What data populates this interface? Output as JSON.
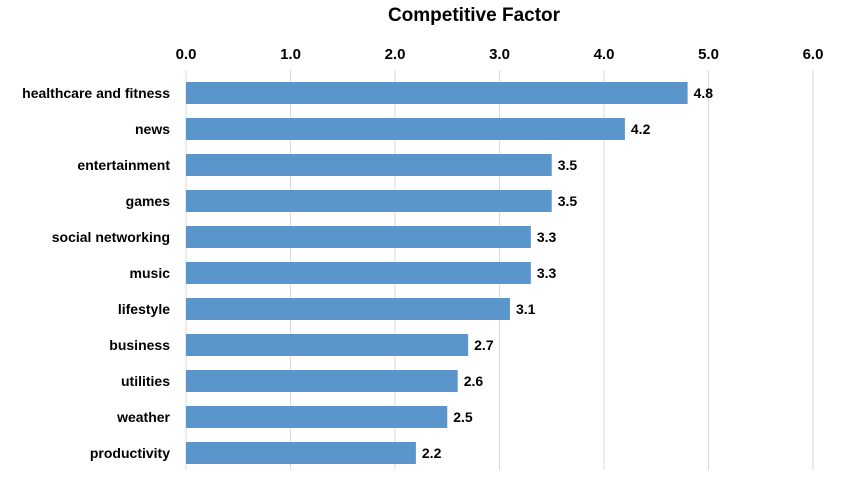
{
  "chart_data": {
    "type": "bar",
    "orientation": "horizontal",
    "title": "Competitive Factor",
    "xlabel": "",
    "ylabel": "",
    "categories": [
      "healthcare and fitness",
      "news",
      "entertainment",
      "games",
      "social networking",
      "music",
      "lifestyle",
      "business",
      "utilities",
      "weather",
      "productivity"
    ],
    "values": [
      4.8,
      4.2,
      3.5,
      3.5,
      3.3,
      3.3,
      3.1,
      2.7,
      2.6,
      2.5,
      2.2
    ],
    "value_labels": [
      "4.8",
      "4.2",
      "3.5",
      "3.5",
      "3.3",
      "3.3",
      "3.1",
      "2.7",
      "2.6",
      "2.5",
      "2.2"
    ],
    "xlim": [
      0,
      6
    ],
    "x_ticks": [
      0,
      1,
      2,
      3,
      4,
      5,
      6
    ],
    "x_tick_labels": [
      "0.0",
      "1.0",
      "2.0",
      "3.0",
      "4.0",
      "5.0",
      "6.0"
    ],
    "axis_position": "top",
    "grid": true,
    "legend": "none",
    "colors": {
      "bar": "#5a96cc",
      "grid": "#d9d9d9",
      "text": "#000000"
    }
  }
}
